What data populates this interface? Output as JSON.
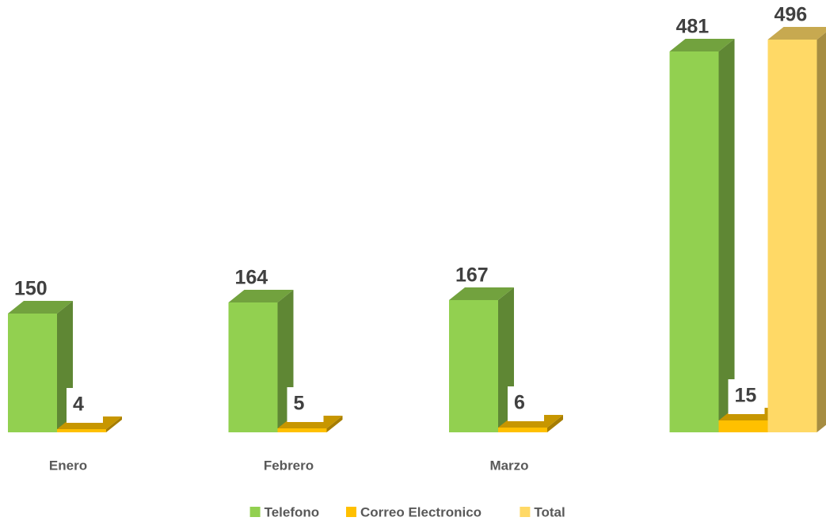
{
  "chart_data": {
    "type": "bar3d",
    "categories": [
      "Enero",
      "Febrero",
      "Marzo",
      null
    ],
    "series": [
      {
        "name": "Telefono",
        "color": "#92d050",
        "values": [
          150,
          164,
          167,
          481
        ]
      },
      {
        "name": "Correo Electronico",
        "color": "#ffc000",
        "values": [
          4,
          5,
          6,
          15
        ]
      },
      {
        "name": "Total",
        "color": "#ffd966",
        "values": [
          null,
          null,
          null,
          496
        ]
      }
    ],
    "ylim": [
      0,
      500
    ],
    "grid": false,
    "legend": "bottom"
  }
}
